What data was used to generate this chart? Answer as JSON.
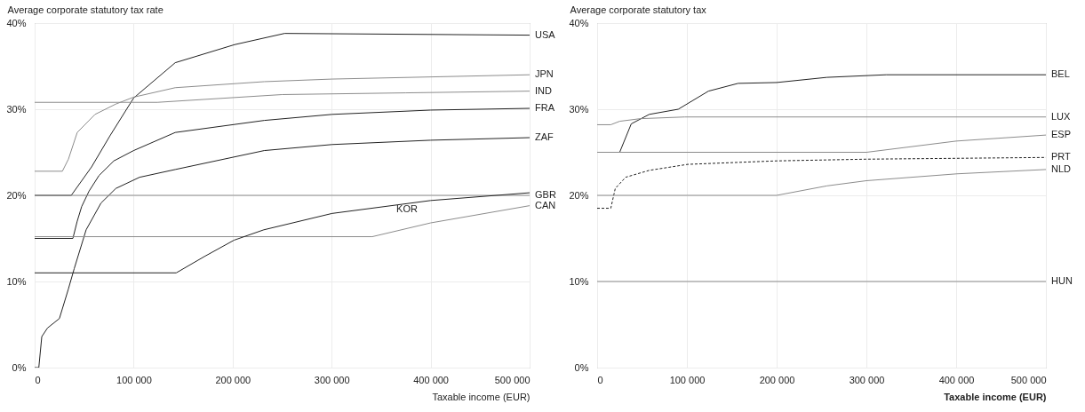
{
  "chart_data": [
    {
      "type": "line",
      "ylabel": "Average corporate statutory tax rate",
      "xlabel": "Taxable income (EUR)",
      "xlim": [
        0,
        500000
      ],
      "ylim": [
        0,
        40
      ],
      "xticks": [
        0,
        {
          "value": 100000,
          "label": "100 000"
        },
        {
          "value": 200000,
          "label": "200 000"
        },
        {
          "value": 300000,
          "label": "300 000"
        },
        {
          "value": 400000,
          "label": "400 000"
        },
        {
          "value": 500000,
          "label": "500 000"
        }
      ],
      "yticks": [
        {
          "value": 0,
          "label": "0%"
        },
        {
          "value": 10,
          "label": "10%"
        },
        {
          "value": 20,
          "label": "20%"
        },
        {
          "value": 30,
          "label": "30%"
        },
        {
          "value": 40,
          "label": "40%"
        }
      ],
      "grid": true,
      "series": [
        {
          "name": "USA",
          "color": "#222222",
          "x": [
            0,
            37000,
            57500,
            76000,
            100000,
            142000,
            202000,
            252500,
            500000
          ],
          "values": [
            20,
            20,
            23.3,
            26.9,
            31.3,
            35.4,
            37.5,
            38.8,
            38.6
          ]
        },
        {
          "name": "JPN",
          "color": "#8c8c8c",
          "x": [
            0,
            28000,
            34100,
            43000,
            61000,
            82000,
            100000,
            142000,
            232000,
            300500,
            500000
          ],
          "values": [
            22.8,
            22.8,
            24.2,
            27.3,
            29.4,
            30.6,
            31.4,
            32.5,
            33.2,
            33.5,
            34.0
          ]
        },
        {
          "name": "IND",
          "color": "#8c8c8c",
          "x": [
            0,
            124000,
            250000,
            375000,
            500000
          ],
          "values": [
            30.8,
            30.8,
            31.7,
            31.9,
            32.1
          ]
        },
        {
          "name": "FRA",
          "color": "#222222",
          "x": [
            0,
            38600,
            43000,
            47500,
            55000,
            65000,
            80000,
            100000,
            142000,
            232000,
            300500,
            400000,
            500000
          ],
          "values": [
            15,
            15,
            17,
            18.7,
            20.5,
            22.3,
            24,
            25.2,
            27.3,
            28.7,
            29.4,
            29.9,
            30.1
          ]
        },
        {
          "name": "ZAF",
          "color": "#222222",
          "x": [
            0,
            4200,
            7200,
            13000,
            25000,
            34000,
            40000,
            52000,
            67000,
            82000,
            106000,
            142000,
            232000,
            300500,
            400000,
            500000
          ],
          "values": [
            0,
            0,
            3.6,
            4.6,
            5.7,
            9.1,
            11.5,
            16.0,
            19.1,
            20.8,
            22.1,
            23.0,
            25.2,
            25.9,
            26.4,
            26.7
          ]
        },
        {
          "name": "GBR",
          "color": "#8c8c8c",
          "x": [
            0,
            500000
          ],
          "values": [
            20,
            20
          ]
        },
        {
          "name": "CAN",
          "color": "#8c8c8c",
          "x": [
            0,
            341000,
            400000,
            500000
          ],
          "values": [
            15.2,
            15.2,
            16.8,
            18.8
          ]
        },
        {
          "color": "#222222",
          "x": [
            0,
            143000,
            171500,
            201500,
            231500,
            300500,
            400000,
            500000
          ],
          "values": [
            11,
            11,
            12.9,
            14.8,
            16.0,
            17.9,
            19.4,
            20.3
          ]
        }
      ],
      "annotations": [
        "KOR"
      ]
    },
    {
      "type": "line",
      "ylabel": "Average corporate statutory tax",
      "xlabel": "Taxable income (EUR)",
      "xlim": [
        0,
        500000
      ],
      "ylim": [
        0,
        40
      ],
      "xticks": [
        0,
        {
          "value": 100000,
          "label": "100 000"
        },
        {
          "value": 200000,
          "label": "200 000"
        },
        {
          "value": 300000,
          "label": "300 000"
        },
        {
          "value": 400000,
          "label": "400 000"
        },
        {
          "value": 500000,
          "label": "500 000"
        }
      ],
      "yticks": [
        {
          "value": 0,
          "label": "0%"
        },
        {
          "value": 10,
          "label": "10%"
        },
        {
          "value": 20,
          "label": "20%"
        },
        {
          "value": 30,
          "label": "30%"
        },
        {
          "value": 40,
          "label": "40%"
        }
      ],
      "grid": true,
      "series": [
        {
          "name": "BEL",
          "color": "#222222",
          "x": [
            0,
            25100,
            38000,
            58000,
            90400,
            124000,
            157000,
            200000,
            256000,
            300000,
            322000,
            500000
          ],
          "values": [
            25,
            25,
            28.3,
            29.4,
            30.0,
            32.1,
            33.0,
            33.1,
            33.7,
            33.9,
            34.0,
            34.0
          ]
        },
        {
          "name": "LUX",
          "color": "#8c8c8c",
          "x": [
            0,
            15200,
            25100,
            48000,
            97500,
            500000
          ],
          "values": [
            28.2,
            28.2,
            28.6,
            28.9,
            29.1,
            29.1
          ]
        },
        {
          "name": "ESP",
          "color": "#8c8c8c",
          "x": [
            0,
            300000,
            400000,
            500000
          ],
          "values": [
            25,
            25,
            26.3,
            27.0
          ]
        },
        {
          "name": "PRT",
          "color": "#222222",
          "line_style": "dashed",
          "x": [
            0,
            15200,
            20200,
            31700,
            58000,
            101000,
            200000,
            300000,
            500000
          ],
          "values": [
            18.5,
            18.5,
            20.8,
            22.1,
            22.9,
            23.6,
            24.0,
            24.2,
            24.4
          ]
        },
        {
          "name": "NLD",
          "color": "#8c8c8c",
          "x": [
            0,
            200000,
            256000,
            300000,
            401000,
            500000
          ],
          "values": [
            20,
            20,
            21.1,
            21.7,
            22.5,
            23.0
          ]
        },
        {
          "name": "HUN",
          "color": "#8c8c8c",
          "x": [
            0,
            500000
          ],
          "values": [
            10,
            10
          ]
        }
      ]
    }
  ]
}
